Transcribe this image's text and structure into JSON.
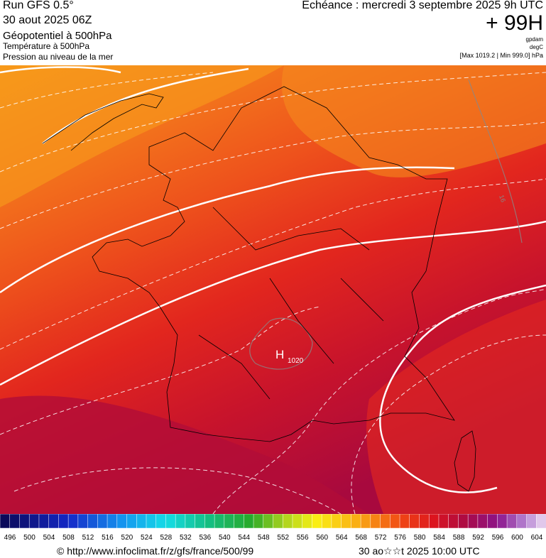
{
  "header": {
    "run": "Run GFS 0.5°",
    "date": "30 aout 2025 06Z",
    "field1": "Géopotentiel à 500hPa",
    "field2": "Température à 500hPa",
    "field3": "Pression au niveau de la mer",
    "valid": "Echéance : mercredi 3 septembre 2025 9h UTC",
    "lead": "+ 99H",
    "unit1": "gpdam",
    "unit2": "degC",
    "range": "[Max 1019.2 | Min 999.0] hPa"
  },
  "map": {
    "high_letter": "H",
    "high_value": "1020",
    "contour_label": "16"
  },
  "legend": {
    "labels": [
      496,
      500,
      504,
      508,
      512,
      516,
      520,
      524,
      528,
      532,
      536,
      540,
      544,
      548,
      552,
      556,
      560,
      564,
      568,
      572,
      576,
      580,
      584,
      588,
      592,
      596,
      600,
      604
    ]
  },
  "footer": {
    "source": "© http://www.infoclimat.fr/z/gfs/france/500/99",
    "generated": "30 ao☆☆t 2025 10:00 UTC"
  }
}
